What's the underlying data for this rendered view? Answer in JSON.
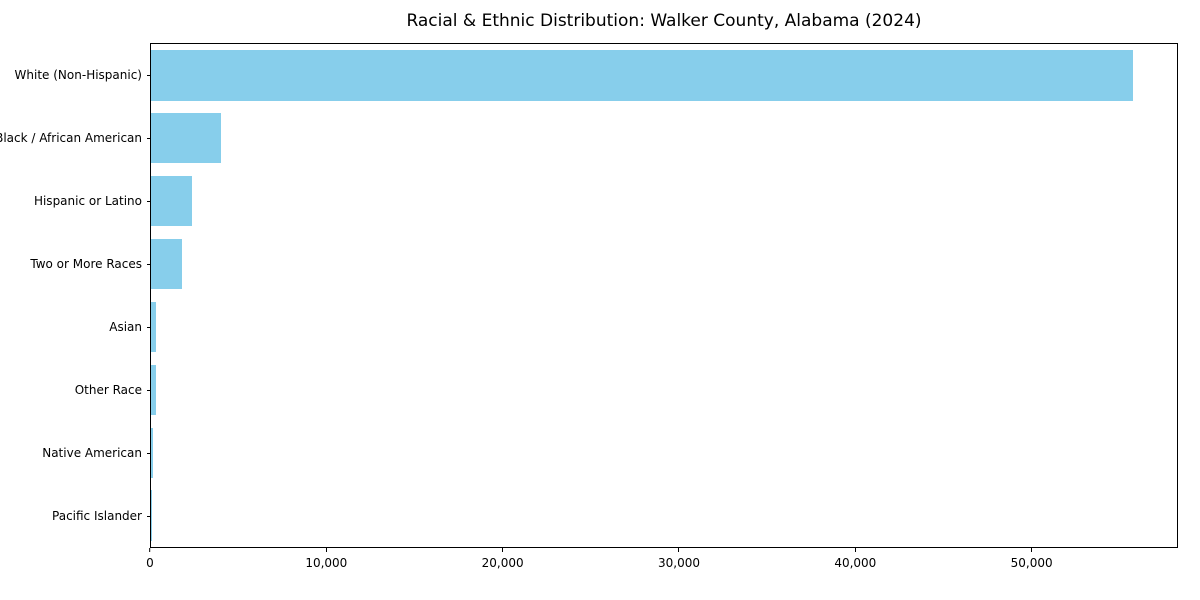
{
  "title": "Racial & Ethnic Distribution: Walker County, Alabama (2024)",
  "chart_data": {
    "type": "bar",
    "orientation": "horizontal",
    "title": "Racial & Ethnic Distribution: Walker County, Alabama (2024)",
    "categories": [
      "White (Non-Hispanic)",
      "Black / African American",
      "Hispanic or Latino",
      "Two or More Races",
      "Asian",
      "Other Race",
      "Native American",
      "Pacific Islander"
    ],
    "values": [
      55800,
      4000,
      2350,
      1750,
      300,
      300,
      120,
      40
    ],
    "xlabel": "",
    "ylabel": "",
    "xlim": [
      0,
      58300
    ],
    "x_ticks": [
      0,
      10000,
      20000,
      30000,
      40000,
      50000
    ],
    "x_tick_labels": [
      "0",
      "10,000",
      "20,000",
      "30,000",
      "40,000",
      "50,000"
    ],
    "bar_color": "#87CEEB",
    "axes_edge_color": "#000000",
    "grid": false,
    "legend": false,
    "background_color": "#ffffff"
  }
}
